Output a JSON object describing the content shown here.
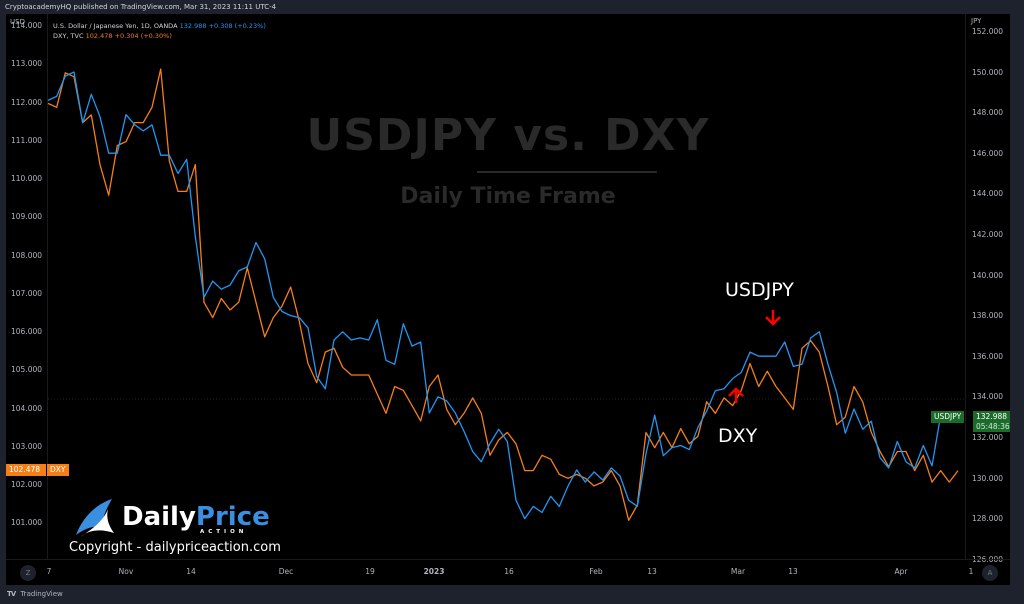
{
  "header": {
    "published": "CryptoacademyHQ published on TradingView.com, Mar 31, 2023 11:11 UTC-4"
  },
  "legend": {
    "usdjpy_name": "U.S. Dollar / Japanese Yen, 1D, OANDA",
    "usdjpy_price": "132.988",
    "usdjpy_change": "+0.308 (+0.23%)",
    "dxy_name": "DXY, TVC",
    "dxy_price": "102.478",
    "dxy_change": "+0.304 (+0.30%)"
  },
  "left_axis": {
    "unit": "USD",
    "ticks": [
      "114.000",
      "113.000",
      "112.000",
      "111.000",
      "110.000",
      "109.000",
      "108.000",
      "107.000",
      "106.000",
      "105.000",
      "104.000",
      "103.000",
      "102.000",
      "101.000"
    ]
  },
  "right_axis": {
    "unit": "JPY",
    "ticks": [
      "152.000",
      "150.000",
      "148.000",
      "146.000",
      "144.000",
      "142.000",
      "140.000",
      "138.000",
      "136.000",
      "134.000",
      "132.000",
      "130.000",
      "128.000",
      "126.000"
    ]
  },
  "time_axis": {
    "labels": [
      "7",
      "Nov",
      "14",
      "Dec",
      "19",
      "2023",
      "16",
      "Feb",
      "13",
      "Mar",
      "13",
      "Apr",
      "1"
    ],
    "zoom_btn": "Z",
    "auto_btn": "A"
  },
  "price_tags": {
    "dxy_value": "102.478",
    "dxy_label": "DXY",
    "usdjpy_label": "USDJPY",
    "usdjpy_value": "132.988",
    "usdjpy_countdown": "05:48:36"
  },
  "overlay": {
    "title": "USDJPY vs. DXY",
    "subtitle": "Daily Time Frame",
    "annotation_usdjpy": "USDJPY",
    "annotation_dxy": "DXY",
    "logo_daily": "Daily",
    "logo_price": "Price",
    "logo_action": "ACTION",
    "copyright": "Copyright - dailypriceaction.com"
  },
  "footer": {
    "brand": "TradingView",
    "logo": "TV"
  },
  "colors": {
    "usdjpy": "#2196f3",
    "dxy": "#f57f17",
    "usdjpy_tag": "#1b6b2a",
    "dxy_tag": "#f57f17",
    "arrow": "#ff0000"
  },
  "chart_data": {
    "type": "line",
    "title": "USDJPY vs. DXY",
    "subtitle": "Daily Time Frame",
    "xlabel": "",
    "ylabel_left": "USD (DXY)",
    "ylabel_right": "JPY (USDJPY)",
    "ylim_left": [
      100.5,
      114.2
    ],
    "ylim_right": [
      125.5,
      152.2
    ],
    "grid": false,
    "legend_position": "top-left",
    "x_tick_labels": [
      "7",
      "Nov",
      "14",
      "Dec",
      "19",
      "2023",
      "16",
      "Feb",
      "13",
      "Mar",
      "13",
      "Apr",
      "1"
    ],
    "series": [
      {
        "name": "USDJPY (OANDA, 1D)",
        "axis": "right",
        "color": "#2196f3",
        "last": 132.988,
        "values": [
          148.6,
          148.8,
          149.8,
          150.0,
          147.5,
          148.9,
          147.8,
          146.0,
          146.0,
          147.9,
          147.4,
          147.1,
          147.4,
          145.9,
          145.9,
          145.0,
          145.7,
          141.9,
          138.9,
          139.7,
          139.3,
          139.5,
          140.2,
          140.4,
          141.6,
          140.8,
          138.9,
          138.2,
          138.0,
          137.9,
          137.4,
          135.0,
          134.4,
          136.8,
          137.2,
          136.8,
          136.9,
          136.8,
          137.8,
          135.8,
          135.6,
          137.6,
          136.5,
          136.7,
          133.2,
          134.0,
          133.8,
          133.2,
          132.3,
          131.3,
          130.8,
          131.7,
          132.4,
          131.8,
          128.9,
          128.0,
          128.6,
          128.3,
          129.1,
          128.6,
          129.6,
          130.4,
          129.8,
          130.3,
          129.9,
          130.5,
          130.1,
          128.9,
          128.6,
          131.2,
          133.1,
          131.1,
          131.5,
          131.6,
          131.4,
          132.5,
          133.3,
          134.3,
          134.4,
          134.9,
          135.2,
          136.2,
          136.0,
          136.0,
          136.0,
          136.7,
          135.5,
          135.6,
          136.9,
          137.2,
          135.6,
          134.2,
          132.2,
          133.4,
          132.4,
          132.8,
          131.0,
          130.5,
          131.8,
          130.8,
          130.5,
          131.6,
          130.6,
          133.1,
          132.9,
          133.0
        ]
      },
      {
        "name": "DXY (TVC, 1D)",
        "axis": "left",
        "color": "#f57f17",
        "last": 102.478,
        "values": [
          112.1,
          112.0,
          112.9,
          112.8,
          111.6,
          111.8,
          110.5,
          109.7,
          111.0,
          111.1,
          111.6,
          111.6,
          112.0,
          113.0,
          110.6,
          109.8,
          109.8,
          110.5,
          106.9,
          106.5,
          107.0,
          106.7,
          106.9,
          107.8,
          106.9,
          106.0,
          106.5,
          106.8,
          107.3,
          106.4,
          105.3,
          104.8,
          105.6,
          105.7,
          105.2,
          105.0,
          105.0,
          105.0,
          104.5,
          104.0,
          104.7,
          104.6,
          104.2,
          103.8,
          104.7,
          105.0,
          104.1,
          103.7,
          104.0,
          104.4,
          104.0,
          102.9,
          103.3,
          103.5,
          103.2,
          102.5,
          102.5,
          102.9,
          102.8,
          102.4,
          102.3,
          102.4,
          102.3,
          102.1,
          102.2,
          102.5,
          102.1,
          101.2,
          101.6,
          103.5,
          103.1,
          103.5,
          103.1,
          103.6,
          103.2,
          103.4,
          104.3,
          104.0,
          104.4,
          104.2,
          104.6,
          105.3,
          104.7,
          105.1,
          104.7,
          104.4,
          104.1,
          105.7,
          105.9,
          105.6,
          104.7,
          103.7,
          103.9,
          104.7,
          104.3,
          103.5,
          103.0,
          102.6,
          103.0,
          103.0,
          102.5,
          102.9,
          102.2,
          102.5,
          102.2,
          102.5
        ]
      }
    ],
    "annotations": [
      {
        "text": "USDJPY",
        "arrow": "down",
        "target_series": "USDJPY",
        "note": "local peak ~137.2 around Mar 8"
      },
      {
        "text": "DXY",
        "arrow": "up",
        "target_series": "DXY",
        "note": "points at DXY dip ~104.1 early Mar"
      }
    ]
  }
}
